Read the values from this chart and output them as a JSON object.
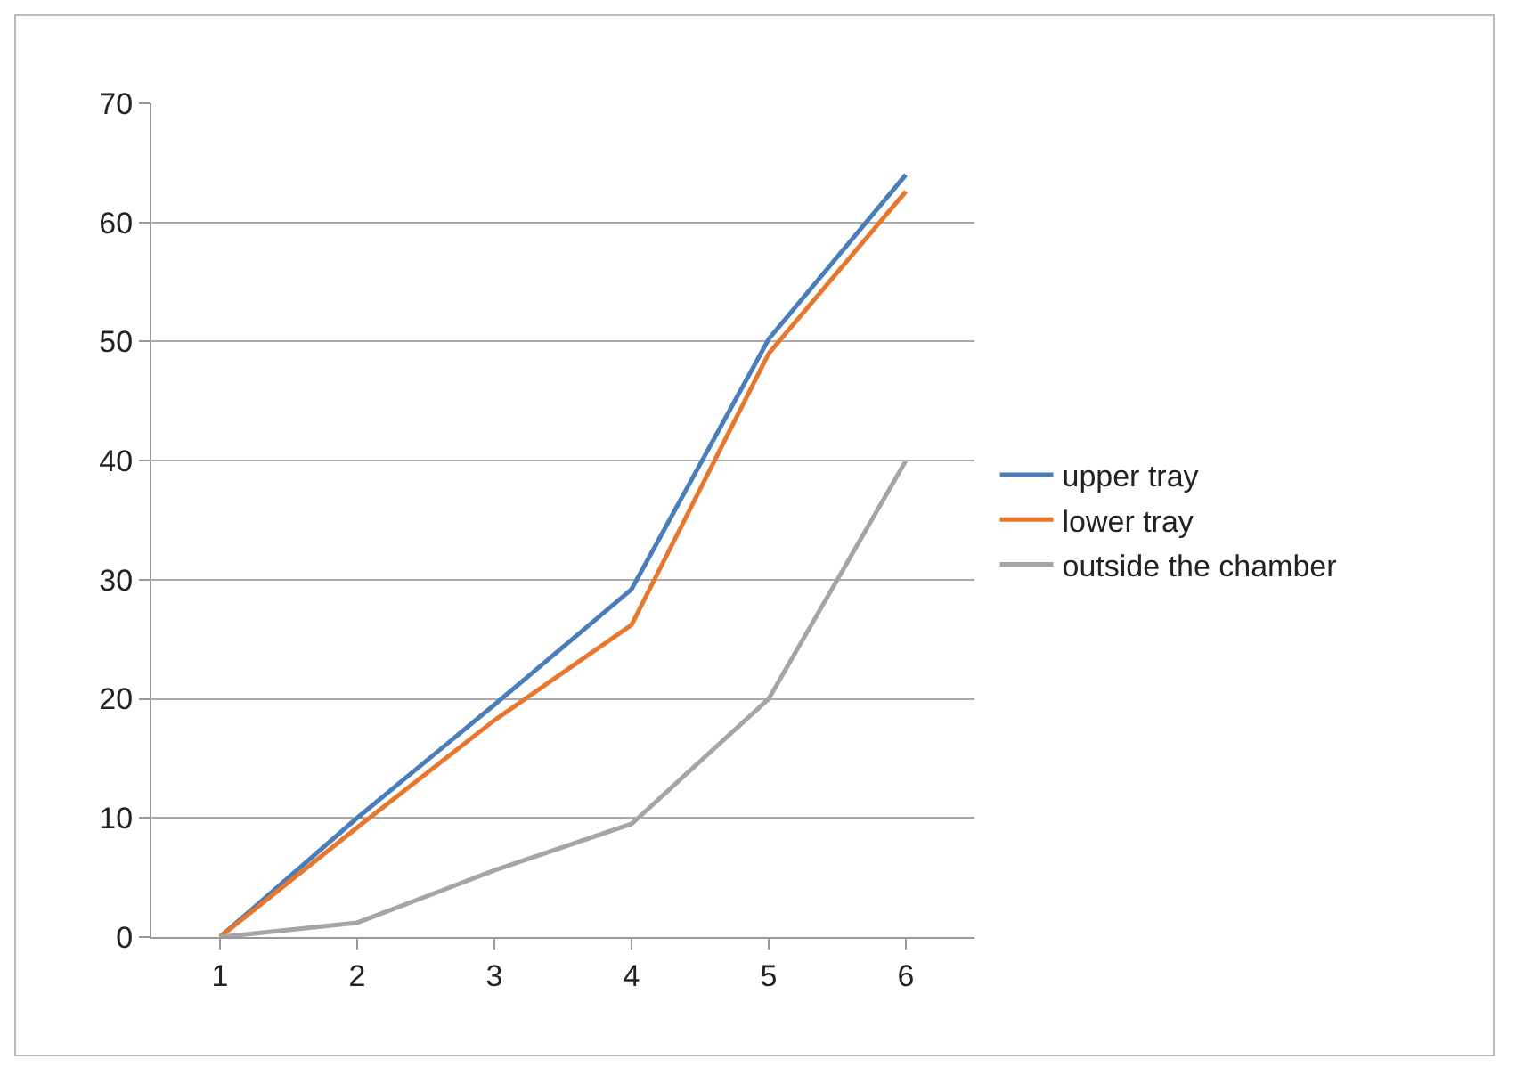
{
  "chart_data": {
    "type": "line",
    "categories": [
      "1",
      "2",
      "3",
      "4",
      "5",
      "6"
    ],
    "series": [
      {
        "name": "upper tray",
        "color": "#4a7ebb",
        "values": [
          0,
          10,
          19.5,
          29.2,
          50.2,
          64
        ]
      },
      {
        "name": "lower tray",
        "color": "#e8772e",
        "values": [
          0,
          9.2,
          18.2,
          26.2,
          49,
          62.6
        ]
      },
      {
        "name": "outside the chamber",
        "color": "#a5a5a5",
        "values": [
          0,
          1.2,
          5.6,
          9.5,
          20,
          40
        ]
      }
    ],
    "ylim": [
      0,
      70
    ],
    "yticks": [
      0,
      10,
      20,
      30,
      40,
      50,
      60,
      70
    ],
    "grid": "y",
    "legend": "right",
    "marker": "none",
    "line_style": "solid"
  }
}
